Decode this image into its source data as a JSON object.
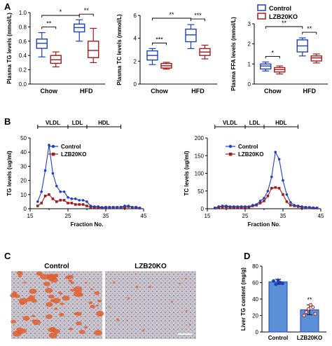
{
  "panels": {
    "A": "A",
    "B": "B",
    "C": "C",
    "D": "D"
  },
  "legend_A": {
    "control": "Control",
    "ko": "LZB20KO"
  },
  "colors": {
    "control": "#1f3fbf",
    "ko": "#a31a1a",
    "bar_fill": "#5b8fd6"
  },
  "chart_data": [
    {
      "id": "A1",
      "type": "box",
      "ylabel": "Plasma TG levels (mmol/L)",
      "categories": [
        "Chow",
        "HFD"
      ],
      "ylim": [
        0,
        1.0
      ],
      "yticks": [
        "0.0",
        "0.2",
        "0.4",
        "0.6",
        "0.8",
        "1.0"
      ],
      "series": [
        {
          "name": "Control",
          "boxes": [
            [
              0.38,
              0.5,
              0.57,
              0.63,
              0.72
            ],
            [
              0.6,
              0.73,
              0.79,
              0.84,
              0.9
            ]
          ]
        },
        {
          "name": "LZB20KO",
          "boxes": [
            [
              0.24,
              0.29,
              0.34,
              0.4,
              0.45
            ],
            [
              0.3,
              0.37,
              0.47,
              0.6,
              0.78
            ]
          ]
        }
      ],
      "significance": [
        "**",
        "**",
        "*"
      ]
    },
    {
      "id": "A2",
      "type": "box",
      "ylabel": "Plasma TC levels (mmol/L)",
      "categories": [
        "Chow",
        "HFD"
      ],
      "ylim": [
        0,
        6
      ],
      "yticks": [
        "0",
        "2",
        "4",
        "6"
      ],
      "series": [
        {
          "name": "Control",
          "boxes": [
            [
              1.7,
              2.1,
              2.5,
              2.9,
              3.1
            ],
            [
              3.1,
              3.7,
              4.3,
              4.8,
              5.2
            ]
          ]
        },
        {
          "name": "LZB20KO",
          "boxes": [
            [
              1.3,
              1.4,
              1.6,
              1.8,
              1.9
            ],
            [
              2.2,
              2.5,
              2.8,
              3.1,
              3.4
            ]
          ]
        }
      ],
      "significance": [
        "***",
        "***",
        "**"
      ]
    },
    {
      "id": "A3",
      "type": "box",
      "ylabel": "Plasma FFA levels (mmol/L)",
      "categories": [
        "Chow",
        "HFD"
      ],
      "ylim": [
        0,
        3
      ],
      "yticks": [
        "0",
        "1",
        "2",
        "3"
      ],
      "series": [
        {
          "name": "Control",
          "boxes": [
            [
              0.65,
              0.75,
              0.9,
              1.0,
              1.1
            ],
            [
              1.4,
              1.6,
              1.9,
              2.2,
              2.3
            ]
          ]
        },
        {
          "name": "LZB20KO",
          "boxes": [
            [
              0.5,
              0.6,
              0.72,
              0.82,
              0.9
            ],
            [
              1.05,
              1.15,
              1.3,
              1.4,
              1.5
            ]
          ]
        }
      ],
      "significance": [
        "*",
        "**",
        "**"
      ]
    },
    {
      "id": "B1",
      "type": "line",
      "xlabel": "Fraction No.",
      "ylabel": "TG levels (ug/ml)",
      "xlim": [
        15,
        45
      ],
      "ylim": [
        0,
        50
      ],
      "xticks": [
        "15",
        "25",
        "35",
        "45"
      ],
      "yticks": [
        "0",
        "10",
        "20",
        "30",
        "40",
        "50"
      ],
      "regions": [
        {
          "label": "VLDL",
          "from": 17,
          "to": 25
        },
        {
          "label": "LDL",
          "from": 25,
          "to": 30
        },
        {
          "label": "HDL",
          "from": 30,
          "to": 39
        }
      ],
      "x": [
        17,
        18,
        19,
        20,
        21,
        22,
        23,
        24,
        25,
        26,
        27,
        28,
        29,
        30,
        31,
        32,
        33,
        34,
        35,
        36,
        37,
        38,
        39,
        40,
        41,
        42,
        43,
        44
      ],
      "series": [
        {
          "name": "Control",
          "values": [
            5,
            12,
            27,
            45,
            25,
            16,
            12,
            12,
            8,
            7,
            7,
            6,
            6,
            5,
            2,
            1.5,
            1.5,
            1,
            1,
            1,
            1,
            1,
            1,
            2,
            2,
            1,
            1,
            0.5
          ]
        },
        {
          "name": "LZB20KO",
          "values": [
            2,
            4,
            9,
            10,
            7,
            5,
            6,
            6,
            4,
            4,
            3,
            3,
            3,
            2,
            1,
            1,
            1,
            0.5,
            1,
            1,
            1,
            1,
            1,
            1,
            1.5,
            1,
            1,
            0.5
          ]
        }
      ]
    },
    {
      "id": "B2",
      "type": "line",
      "xlabel": "Fraction No.",
      "ylabel": "TC levels (ug/ml)",
      "xlim": [
        15,
        45
      ],
      "ylim": [
        0,
        200
      ],
      "xticks": [
        "15",
        "25",
        "35",
        "45"
      ],
      "yticks": [
        "0",
        "50",
        "100",
        "150",
        "200"
      ],
      "regions": [
        {
          "label": "VLDL",
          "from": 17,
          "to": 25
        },
        {
          "label": "LDL",
          "from": 25,
          "to": 30
        },
        {
          "label": "HDL",
          "from": 30,
          "to": 39
        }
      ],
      "x": [
        17,
        18,
        19,
        20,
        21,
        22,
        23,
        24,
        25,
        26,
        27,
        28,
        29,
        30,
        31,
        32,
        33,
        34,
        35,
        36,
        37,
        38,
        39,
        40,
        41,
        42,
        43,
        44
      ],
      "series": [
        {
          "name": "Control",
          "values": [
            2,
            6,
            8,
            8,
            6,
            6,
            6,
            6,
            6,
            6,
            10,
            12,
            22,
            30,
            50,
            90,
            160,
            140,
            80,
            40,
            18,
            10,
            8,
            6,
            4,
            4,
            3,
            2
          ]
        },
        {
          "name": "LZB20KO",
          "values": [
            2,
            4,
            5,
            5,
            4,
            4,
            4,
            4,
            4,
            4,
            8,
            10,
            16,
            22,
            36,
            58,
            60,
            58,
            40,
            20,
            10,
            8,
            6,
            4,
            4,
            3,
            2,
            2
          ]
        }
      ]
    },
    {
      "id": "D",
      "type": "bar",
      "ylabel": "Liver TG content (mg/g)",
      "categories": [
        "Control",
        "LZB20KO"
      ],
      "values": [
        61,
        27
      ],
      "errors": [
        3,
        6
      ],
      "ylim": [
        0,
        80
      ],
      "yticks": [
        "0",
        "20",
        "40",
        "60",
        "80"
      ],
      "points": [
        [
          62,
          58,
          63,
          60,
          59
        ],
        [
          20,
          24,
          28,
          33,
          30,
          22
        ]
      ],
      "significance": [
        "",
        "**"
      ]
    }
  ],
  "panel_C": {
    "left_label": "Control",
    "right_label": "LZB20KO"
  }
}
